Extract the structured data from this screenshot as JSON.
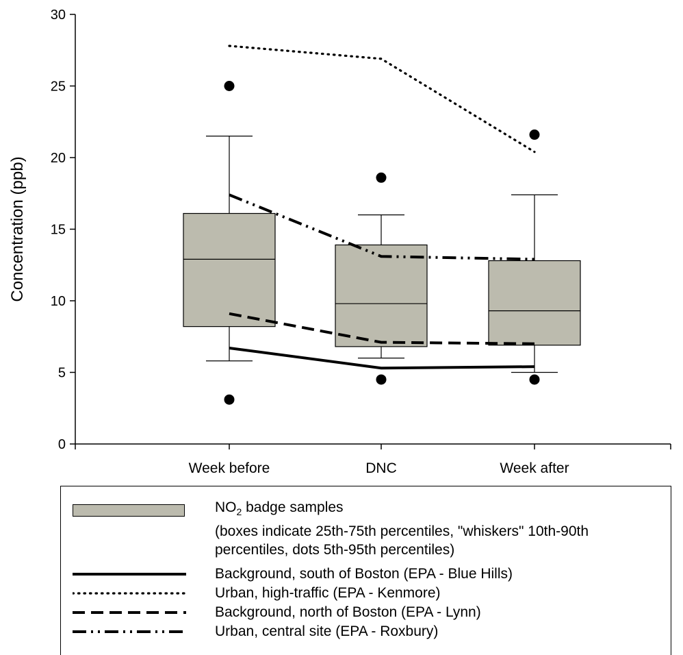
{
  "chart_data": {
    "type": "box",
    "ylabel": "Concentration (ppb)",
    "xlabel": "",
    "ylim": [
      0,
      30
    ],
    "yticks": [
      0,
      5,
      10,
      15,
      20,
      25,
      30
    ],
    "categories": [
      "Week before",
      "DNC",
      "Week after"
    ],
    "boxes": [
      {
        "category": "Week before",
        "p5": 3.1,
        "p10": 5.8,
        "p25": 8.2,
        "median": 12.9,
        "p75": 16.1,
        "p90": 21.5,
        "p95": 25.0
      },
      {
        "category": "DNC",
        "p5": 4.5,
        "p10": 6.0,
        "p25": 6.8,
        "median": 9.8,
        "p75": 13.9,
        "p90": 16.0,
        "p95": 18.6
      },
      {
        "category": "Week after",
        "p5": 4.5,
        "p10": 5.0,
        "p25": 6.9,
        "median": 9.3,
        "p75": 12.8,
        "p90": 17.4,
        "p95": 21.6
      }
    ],
    "series": [
      {
        "name": "Background, south of Boston (EPA - Blue Hills)",
        "style": "solid",
        "values": [
          6.7,
          5.3,
          5.4
        ]
      },
      {
        "name": "Urban, high-traffic (EPA - Kenmore)",
        "style": "dotted",
        "values": [
          27.8,
          26.9,
          20.4
        ]
      },
      {
        "name": "Background, north of Boston (EPA - Lynn)",
        "style": "dashed",
        "values": [
          9.1,
          7.1,
          7.0
        ]
      },
      {
        "name": "Urban, central site (EPA - Roxbury)",
        "style": "dash-dot-dot",
        "values": [
          17.4,
          13.1,
          12.9
        ]
      }
    ],
    "box_fill_color": "#bcbbae",
    "grid": false
  },
  "legend": {
    "box_label_main": "NO",
    "box_label_sub": "2",
    "box_label_rest": " badge samples",
    "note_line1": "(boxes indicate 25th-75th percentiles, \"whiskers\" 10th-90th",
    "note_line2": "percentiles, dots 5th-95th percentiles)"
  }
}
